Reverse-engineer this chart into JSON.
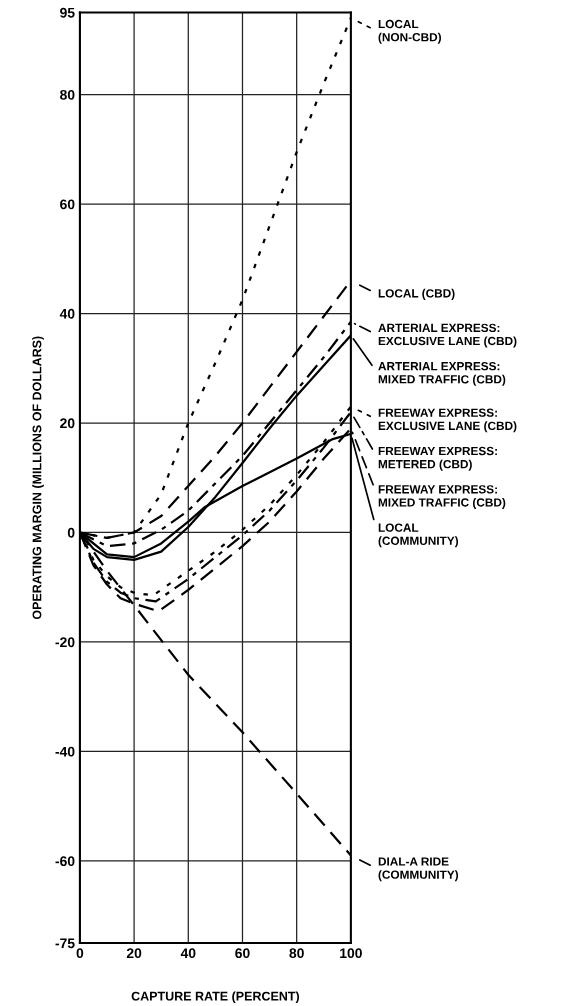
{
  "chart_data": {
    "type": "line",
    "xlabel": "CAPTURE RATE (PERCENT)",
    "ylabel": "OPERATING MARGIN (MILLIONS OF DOLLARS)",
    "xlim": [
      0,
      100
    ],
    "xticks": [
      0,
      20,
      40,
      60,
      80,
      100
    ],
    "ylim": [
      -75,
      95
    ],
    "yticks": [
      -75,
      -60,
      -40,
      -20,
      0,
      20,
      40,
      60,
      80,
      95
    ],
    "grid": true,
    "legend": "right",
    "marker": "none",
    "series": [
      {
        "name": "LOCAL\n(NON-CBD)",
        "color": "#000000",
        "line_style": "dotted",
        "x": [
          0,
          10,
          20,
          30,
          40,
          50,
          60,
          70,
          80,
          90,
          100
        ],
        "values": [
          0,
          -1,
          0,
          7,
          20,
          31,
          42.5,
          56,
          69.5,
          82,
          94
        ]
      },
      {
        "name": "LOCAL (CBD)",
        "color": "#000000",
        "line_style": "dashed",
        "x": [
          0,
          10,
          20,
          30,
          40,
          50,
          60,
          70,
          80,
          90,
          100
        ],
        "values": [
          0,
          -1,
          0,
          3,
          8.5,
          14,
          20,
          26.5,
          33,
          39.5,
          46
        ]
      },
      {
        "name": "ARTERIAL EXPRESS:\nEXCLUSIVE LANE (CBD)",
        "color": "#000000",
        "line_style": "dashdot",
        "x": [
          0,
          10,
          20,
          30,
          40,
          50,
          60,
          70,
          80,
          90,
          100
        ],
        "values": [
          0,
          -2.5,
          -2,
          0.5,
          4,
          9,
          14,
          20,
          26,
          32,
          38.5
        ]
      },
      {
        "name": "ARTERIAL EXPRESS:\nMIXED TRAFFIC (CBD)",
        "color": "#000000",
        "line_style": "solid",
        "x": [
          0,
          5,
          10,
          20,
          30,
          40,
          50,
          60,
          70,
          80,
          90,
          100
        ],
        "values": [
          0,
          -3,
          -4.5,
          -5,
          -3.5,
          1,
          6.5,
          12.7,
          19,
          25,
          30.5,
          36
        ]
      },
      {
        "name": "FREEWAY EXPRESS:\nEXCLUSIVE LANE (CBD)",
        "color": "#000000",
        "line_style": "dotted",
        "x": [
          0,
          5,
          10,
          15,
          20,
          27,
          40,
          50,
          60,
          70,
          80,
          90,
          100
        ],
        "values": [
          0,
          -5,
          -8,
          -10,
          -11,
          -11.5,
          -7,
          -3.5,
          0.5,
          5,
          10.5,
          16.5,
          23
        ]
      },
      {
        "name": "FREEWAY EXPRESS:\nMETERED (CBD)",
        "color": "#000000",
        "line_style": "dashdot",
        "x": [
          0,
          5,
          10,
          15,
          20,
          28,
          40,
          50,
          60,
          70,
          80,
          90,
          100
        ],
        "values": [
          0,
          -5.5,
          -9,
          -11,
          -12,
          -12.6,
          -8.5,
          -4.5,
          -0.5,
          4,
          9.5,
          15.5,
          22
        ]
      },
      {
        "name": "FREEWAY EXPRESS:\nMIXED TRAFFIC (CBD)",
        "color": "#000000",
        "line_style": "dashed",
        "x": [
          0,
          5,
          10,
          15,
          20,
          29,
          40,
          50,
          60,
          70,
          80,
          90,
          100
        ],
        "values": [
          0,
          -6,
          -9.5,
          -12,
          -13,
          -14.4,
          -10.5,
          -6.5,
          -2.5,
          2,
          7.5,
          13.5,
          19
        ]
      },
      {
        "name": "LOCAL\n(COMMUNITY)",
        "color": "#000000",
        "line_style": "solid",
        "x": [
          0,
          10,
          20,
          30,
          40,
          46,
          60,
          80,
          93,
          100
        ],
        "values": [
          0,
          -4,
          -4.5,
          -2,
          2,
          4.6,
          8.5,
          13.5,
          17,
          18
        ]
      },
      {
        "name": "DIAL-A RIDE\n(COMMUNITY)",
        "color": "#000000",
        "line_style": "dashed",
        "x": [
          0,
          10,
          20,
          40,
          60,
          80,
          100
        ],
        "values": [
          0,
          -7,
          -13.3,
          -26,
          -36.5,
          -47.7,
          -59
        ]
      }
    ]
  }
}
